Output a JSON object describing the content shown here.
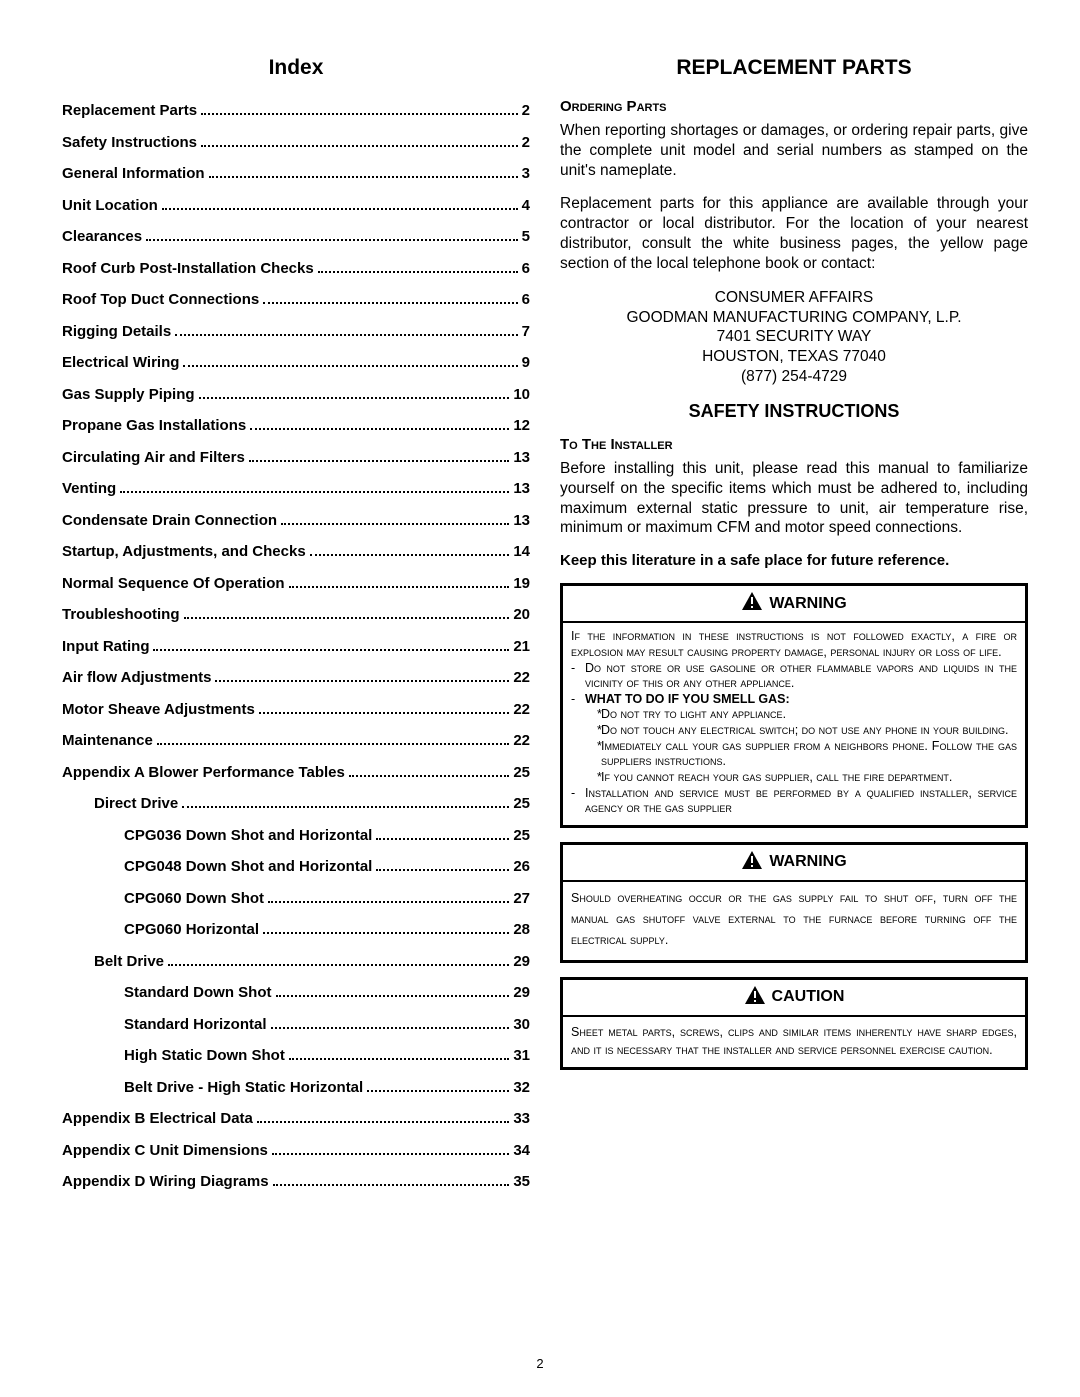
{
  "pageNumber": "2",
  "left": {
    "title": "Index",
    "toc": [
      {
        "label": "Replacement Parts",
        "page": "2",
        "level": 0
      },
      {
        "label": "Safety Instructions",
        "page": "2",
        "level": 0
      },
      {
        "label": "General Information",
        "page": "3",
        "level": 0
      },
      {
        "label": "Unit Location",
        "page": "4",
        "level": 0
      },
      {
        "label": "Clearances",
        "page": "5",
        "level": 0
      },
      {
        "label": "Roof Curb Post-Installation Checks",
        "page": "6",
        "level": 0
      },
      {
        "label": "Roof Top Duct Connections",
        "page": "6",
        "level": 0
      },
      {
        "label": "Rigging Details",
        "page": "7",
        "level": 0
      },
      {
        "label": "Electrical Wiring",
        "page": "9",
        "level": 0
      },
      {
        "label": "Gas Supply Piping",
        "page": "10",
        "level": 0
      },
      {
        "label": "Propane Gas Installations",
        "page": "12",
        "level": 0
      },
      {
        "label": "Circulating Air and Filters",
        "page": "13",
        "level": 0
      },
      {
        "label": "Venting",
        "page": "13",
        "level": 0
      },
      {
        "label": "Condensate Drain Connection",
        "page": "13",
        "level": 0
      },
      {
        "label": "Startup, Adjustments, and Checks",
        "page": "14",
        "level": 0
      },
      {
        "label": "Normal Sequence Of Operation",
        "page": "19",
        "level": 0
      },
      {
        "label": "Troubleshooting",
        "page": "20",
        "level": 0
      },
      {
        "label": "Input Rating",
        "page": "21",
        "level": 0
      },
      {
        "label": "Air flow Adjustments",
        "page": "22",
        "level": 0
      },
      {
        "label": "Motor Sheave Adjustments",
        "page": "22",
        "level": 0
      },
      {
        "label": "Maintenance",
        "page": "22",
        "level": 0
      },
      {
        "label": "Appendix A Blower Performance Tables",
        "page": "25",
        "level": 0
      },
      {
        "label": "Direct Drive",
        "page": "25",
        "level": 1
      },
      {
        "label": "CPG036 Down Shot and Horizontal",
        "page": "25",
        "level": 2
      },
      {
        "label": "CPG048 Down Shot and Horizontal",
        "page": "26",
        "level": 2
      },
      {
        "label": "CPG060 Down Shot",
        "page": "27",
        "level": 2
      },
      {
        "label": "CPG060 Horizontal",
        "page": "28",
        "level": 2
      },
      {
        "label": "Belt Drive",
        "page": "29",
        "level": 1
      },
      {
        "label": "Standard Down Shot",
        "page": "29",
        "level": 2
      },
      {
        "label": "Standard Horizontal",
        "page": "30",
        "level": 2
      },
      {
        "label": "High Static Down Shot",
        "page": "31",
        "level": 2
      },
      {
        "label": "Belt Drive - High Static Horizontal",
        "page": "32",
        "level": 2
      },
      {
        "label": "Appendix B Electrical Data",
        "page": "33",
        "level": 0
      },
      {
        "label": "Appendix C Unit Dimensions",
        "page": "34",
        "level": 0
      },
      {
        "label": "Appendix D Wiring Diagrams",
        "page": "35",
        "level": 0
      }
    ]
  },
  "right": {
    "replacementPartsTitle": "REPLACEMENT PARTS",
    "orderingPartsHeading": "Ordering Parts",
    "orderingParts1": "When reporting shortages or damages, or ordering repair parts, give the complete unit model and serial numbers as stamped on the unit's nameplate.",
    "orderingParts2": "Replacement parts for this appliance are available through your contractor or local distributor. For the location of your nearest distributor, consult the white business pages, the yellow page section of the local telephone book or contact:",
    "contact": {
      "l1": "CONSUMER AFFAIRS",
      "l2": "GOODMAN MANUFACTURING COMPANY, L.P.",
      "l3": "7401 SECURITY WAY",
      "l4": "HOUSTON, TEXAS 77040",
      "l5": "(877) 254-4729"
    },
    "safetyTitle": "SAFETY INSTRUCTIONS",
    "toInstallerHeading": "To The Installer",
    "toInstallerBody": "Before installing this unit, please read this manual to familiarize  yourself on the specific items which must be adhered to, including maximum external static pressure to unit, air temperature rise, minimum or maximum CFM and motor speed connections.",
    "keepLiterature": "Keep this literature in a safe place for future reference.",
    "warningLabel": "WARNING",
    "cautionLabel": "CAUTION",
    "warning1": {
      "line1": "If the information in these instructions is not followed exactly, a fire or explosion may result causing property damage, personal injury or loss of life.",
      "b1": "Do not store or use gasoline or other flammable vapors and liquids in the vicinity of this or any other appliance.",
      "whatToDo": "WHAT TO DO IF YOU SMELL GAS:",
      "s1": "Do not try to light any appliance.",
      "s2": "Do not touch any electrical switch; do not use any phone in your building.",
      "s3": "Immediately call your gas supplier from a neighbors phone. Follow the gas suppliers instructions.",
      "s4": "If you cannot reach your gas supplier, call the fire department.",
      "b2": "Installation and service must be performed by a qualified installer, service agency or the gas supplier"
    },
    "warning2": "Should overheating occur or the gas supply fail to shut off, turn off the manual gas shutoff valve external to the furnace before turning off the electrical supply.",
    "caution1": "Sheet metal parts, screws, clips and similar items inherently have sharp edges, and it is necessary that the installer and service personnel exercise caution."
  },
  "colors": {
    "text": "#000000",
    "background": "#ffffff",
    "border": "#000000"
  }
}
